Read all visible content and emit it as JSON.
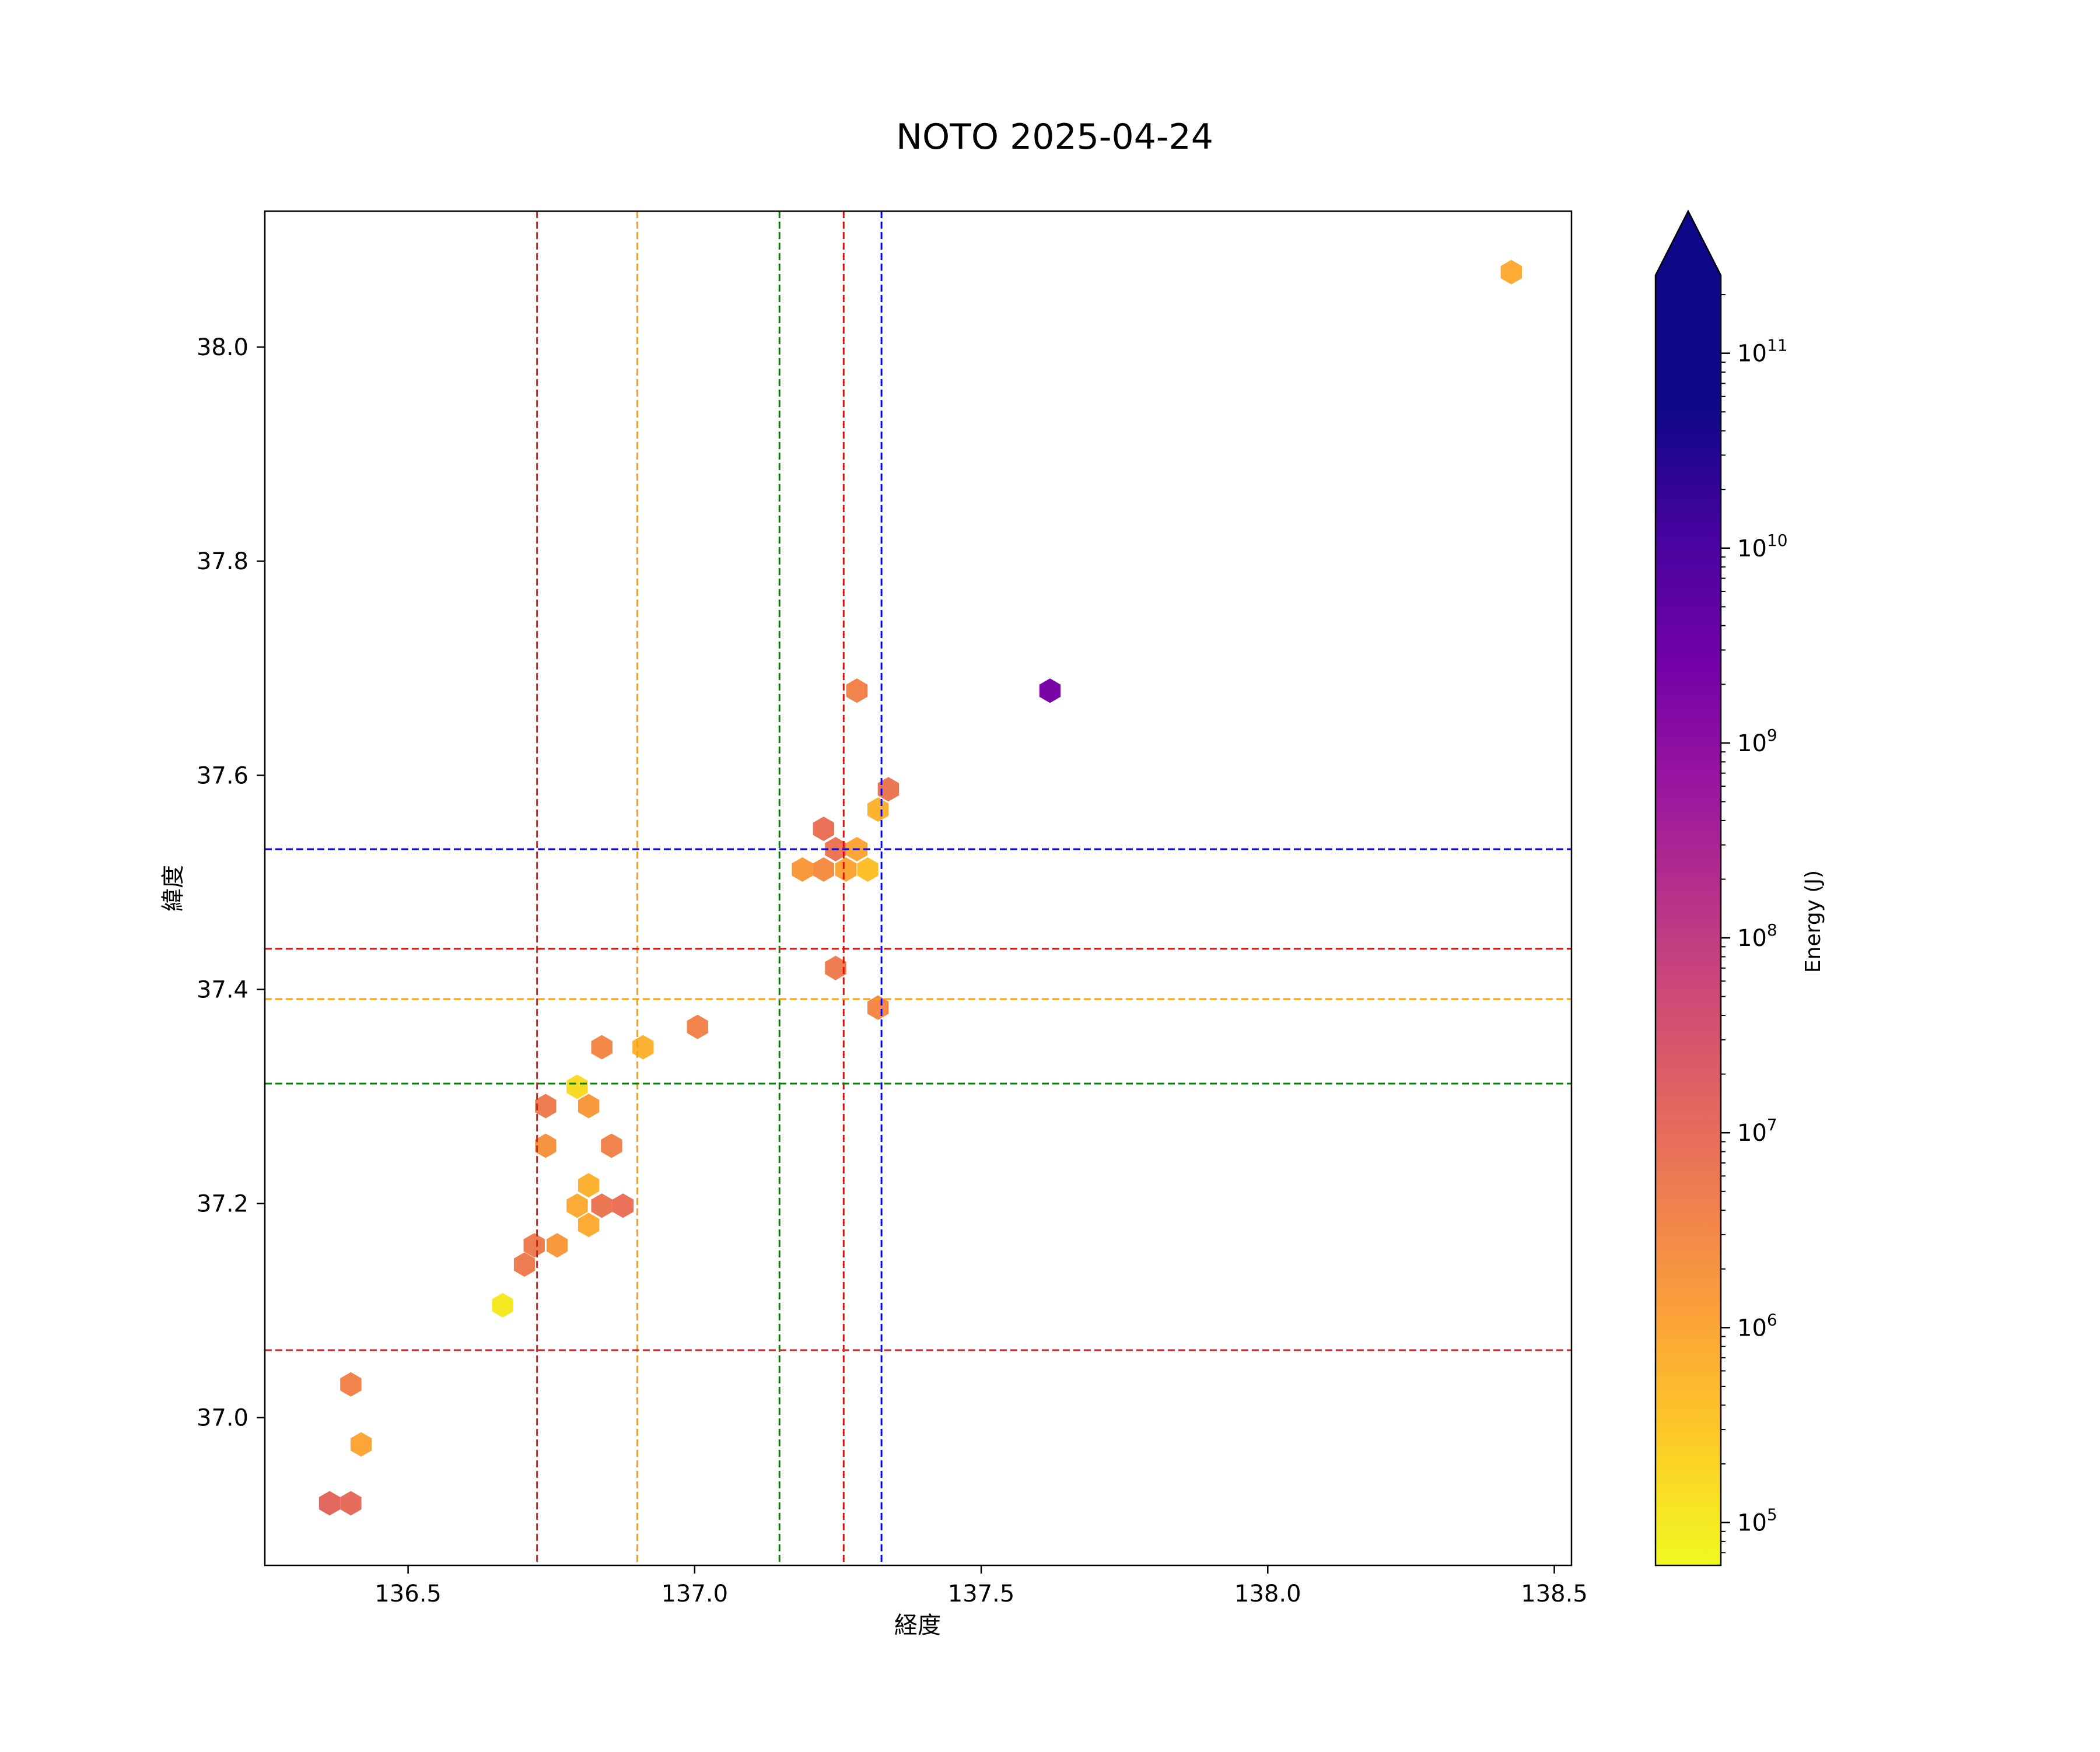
{
  "chart_data": {
    "type": "hexbin",
    "title": "NOTO 2025-04-24",
    "xlabel": "経度",
    "ylabel": "緯度",
    "xlim": [
      136.25,
      138.53
    ],
    "ylim": [
      36.862,
      38.127
    ],
    "x_ticks": [
      136.5,
      137.0,
      137.5,
      138.0,
      138.5
    ],
    "x_tick_labels": [
      "136.5",
      "137.0",
      "137.5",
      "138.0",
      "138.5"
    ],
    "y_ticks": [
      37.0,
      37.2,
      37.4,
      37.6,
      37.8,
      38.0
    ],
    "y_tick_labels": [
      "37.0",
      "37.2",
      "37.4",
      "37.6",
      "37.8",
      "38.0"
    ],
    "grid": false,
    "colorbar": {
      "label": "Energy (J)",
      "scale": "log",
      "colormap": "plasma_r",
      "range_log10": [
        4.78,
        11.4
      ],
      "extend": "max",
      "ticks_log10": [
        5,
        6,
        7,
        8,
        9,
        10,
        11
      ],
      "tick_base": "10",
      "tick_exponents": [
        "5",
        "6",
        "7",
        "8",
        "9",
        "10",
        "11"
      ]
    },
    "reference_lines": {
      "vertical": [
        {
          "x": 136.725,
          "color": "#c62828"
        },
        {
          "x": 136.9,
          "color": "#ffa000"
        },
        {
          "x": 137.148,
          "color": "#008000"
        },
        {
          "x": 137.26,
          "color": "#ff0000"
        },
        {
          "x": 137.326,
          "color": "#0000ff"
        }
      ],
      "horizontal": [
        {
          "y": 37.531,
          "color": "#0000ff"
        },
        {
          "y": 37.438,
          "color": "#ff0000"
        },
        {
          "y": 37.391,
          "color": "#ffa000"
        },
        {
          "y": 37.312,
          "color": "#008000"
        },
        {
          "y": 37.063,
          "color": "#c62828"
        }
      ]
    },
    "points": [
      {
        "lon": 138.425,
        "lat": 38.07,
        "energy_log10": 5.9
      },
      {
        "lon": 137.62,
        "lat": 37.679,
        "energy_log10": 9.3
      },
      {
        "lon": 137.283,
        "lat": 37.679,
        "energy_log10": 6.6
      },
      {
        "lon": 137.338,
        "lat": 37.587,
        "energy_log10": 6.8
      },
      {
        "lon": 137.32,
        "lat": 37.568,
        "energy_log10": 5.8
      },
      {
        "lon": 137.225,
        "lat": 37.55,
        "energy_log10": 6.9
      },
      {
        "lon": 137.246,
        "lat": 37.531,
        "energy_log10": 6.8
      },
      {
        "lon": 137.283,
        "lat": 37.531,
        "energy_log10": 6.0
      },
      {
        "lon": 137.188,
        "lat": 37.512,
        "energy_log10": 6.2
      },
      {
        "lon": 137.225,
        "lat": 37.512,
        "energy_log10": 6.4
      },
      {
        "lon": 137.264,
        "lat": 37.512,
        "energy_log10": 6.0
      },
      {
        "lon": 137.302,
        "lat": 37.512,
        "energy_log10": 5.6
      },
      {
        "lon": 137.246,
        "lat": 37.42,
        "energy_log10": 6.7
      },
      {
        "lon": 137.32,
        "lat": 37.383,
        "energy_log10": 6.5
      },
      {
        "lon": 137.005,
        "lat": 37.365,
        "energy_log10": 6.6
      },
      {
        "lon": 136.838,
        "lat": 37.346,
        "energy_log10": 6.5
      },
      {
        "lon": 136.91,
        "lat": 37.346,
        "energy_log10": 5.8
      },
      {
        "lon": 136.795,
        "lat": 37.309,
        "energy_log10": 5.2
      },
      {
        "lon": 136.74,
        "lat": 37.291,
        "energy_log10": 6.7
      },
      {
        "lon": 136.815,
        "lat": 37.291,
        "energy_log10": 6.2
      },
      {
        "lon": 136.74,
        "lat": 37.254,
        "energy_log10": 6.3
      },
      {
        "lon": 136.855,
        "lat": 37.254,
        "energy_log10": 6.6
      },
      {
        "lon": 136.815,
        "lat": 37.217,
        "energy_log10": 5.8
      },
      {
        "lon": 136.795,
        "lat": 37.198,
        "energy_log10": 5.9
      },
      {
        "lon": 136.838,
        "lat": 37.198,
        "energy_log10": 6.8
      },
      {
        "lon": 136.875,
        "lat": 37.198,
        "energy_log10": 6.9
      },
      {
        "lon": 136.815,
        "lat": 37.18,
        "energy_log10": 5.9
      },
      {
        "lon": 136.72,
        "lat": 37.161,
        "energy_log10": 6.7
      },
      {
        "lon": 136.76,
        "lat": 37.161,
        "energy_log10": 6.2
      },
      {
        "lon": 136.703,
        "lat": 37.143,
        "energy_log10": 6.7
      },
      {
        "lon": 136.665,
        "lat": 37.105,
        "energy_log10": 5.0
      },
      {
        "lon": 136.4,
        "lat": 37.031,
        "energy_log10": 6.6
      },
      {
        "lon": 136.418,
        "lat": 36.975,
        "energy_log10": 6.0
      },
      {
        "lon": 136.363,
        "lat": 36.92,
        "energy_log10": 7.1
      },
      {
        "lon": 136.4,
        "lat": 36.92,
        "energy_log10": 7.0
      }
    ]
  }
}
